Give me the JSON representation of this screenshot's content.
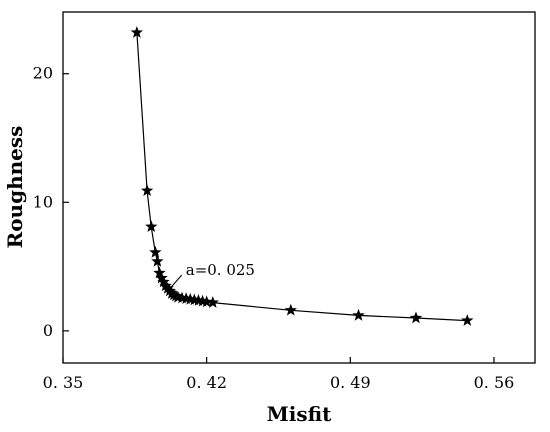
{
  "chart_data": {
    "type": "line",
    "title": "",
    "xlabel": "Misfit",
    "ylabel": "Roughness",
    "xlim": [
      0.35,
      0.58
    ],
    "ylim": [
      -2.5,
      24.8
    ],
    "xticks": [
      0.35,
      0.42,
      0.49,
      0.56
    ],
    "xtick_labels": [
      "0. 35",
      "0. 42",
      "0. 49",
      "0. 56"
    ],
    "yticks": [
      0,
      10,
      20
    ],
    "ytick_labels": [
      "0",
      "10",
      "20"
    ],
    "grid": false,
    "legend": "none",
    "marker": "star",
    "series": [
      {
        "x": [
          0.386,
          0.391,
          0.393,
          0.395,
          0.396,
          0.397,
          0.398,
          0.399,
          0.4,
          0.401,
          0.402,
          0.403,
          0.404,
          0.405,
          0.406,
          0.408,
          0.41,
          0.412,
          0.414,
          0.416,
          0.418,
          0.42,
          0.423,
          0.461,
          0.494,
          0.522,
          0.547
        ],
        "y": [
          23.2,
          10.9,
          8.1,
          6.1,
          5.4,
          4.5,
          4.1,
          3.8,
          3.5,
          3.3,
          3.1,
          2.9,
          2.8,
          2.7,
          2.6,
          2.55,
          2.5,
          2.45,
          2.4,
          2.35,
          2.3,
          2.25,
          2.2,
          1.6,
          1.2,
          1.0,
          0.8
        ]
      }
    ],
    "annotations": [
      {
        "text": "a=0. 025",
        "x": 0.403,
        "y": 3.1
      }
    ]
  }
}
